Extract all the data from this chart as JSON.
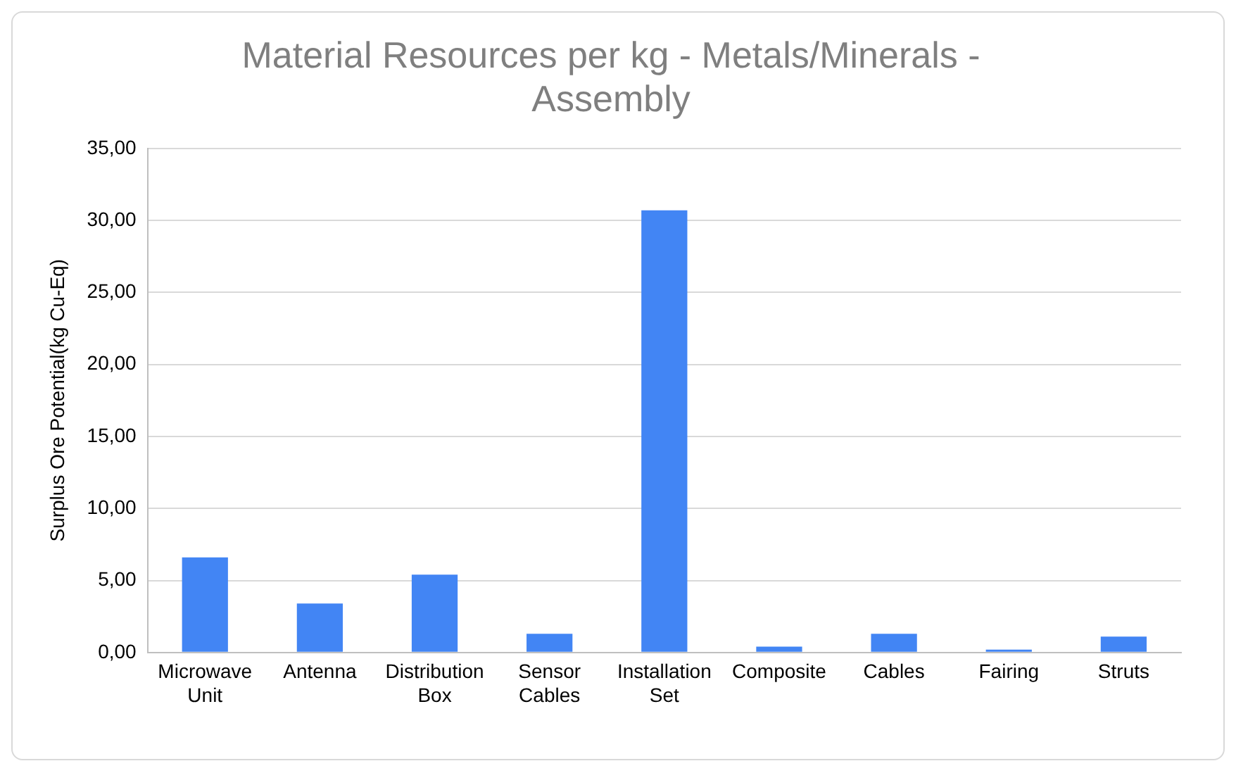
{
  "chart_data": {
    "type": "bar",
    "title": "Material Resources per kg - Metals/Minerals - Assembly",
    "ylabel": "Surplus Ore Potential(kg Cu-Eq)",
    "categories": [
      "Microwave Unit",
      "Antenna",
      "Distribution Box",
      "Sensor Cables",
      "Installation Set",
      "Composite",
      "Cables",
      "Fairing",
      "Struts"
    ],
    "values": [
      6.6,
      3.4,
      5.4,
      1.3,
      30.7,
      0.4,
      1.3,
      0.2,
      1.1
    ],
    "color": "#4285f4",
    "ylim": [
      0,
      35
    ],
    "yticks": [
      {
        "value": 0,
        "label": "0,00"
      },
      {
        "value": 5,
        "label": "5,00"
      },
      {
        "value": 10,
        "label": "10,00"
      },
      {
        "value": 15,
        "label": "15,00"
      },
      {
        "value": 20,
        "label": "20,00"
      },
      {
        "value": 25,
        "label": "25,00"
      },
      {
        "value": 30,
        "label": "30,00"
      },
      {
        "value": 35,
        "label": "35,00"
      }
    ],
    "grid": "y",
    "legend": false
  }
}
